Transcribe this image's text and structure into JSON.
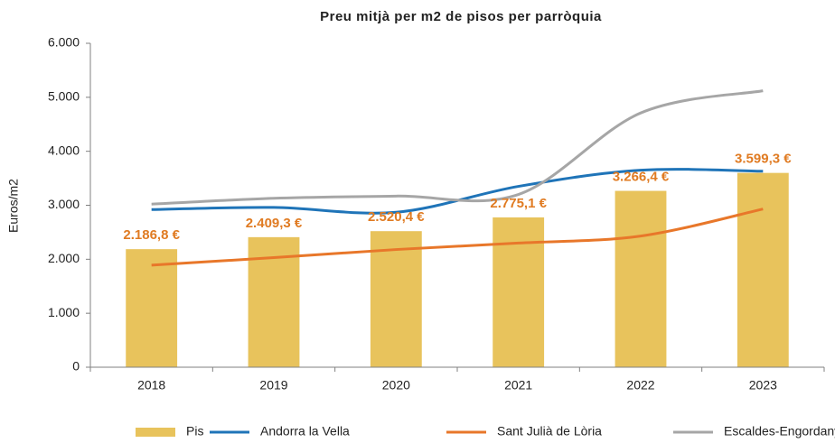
{
  "chart_data": {
    "type": "bar",
    "title": "Preu mitjà per m2 de pisos per parròquia",
    "y_label": "Euros/m2",
    "categories": [
      "2018",
      "2019",
      "2020",
      "2021",
      "2022",
      "2023"
    ],
    "ylim": [
      0,
      6000
    ],
    "yticks": [
      0,
      {
        "value": 1000,
        "label": "1.000"
      },
      {
        "value": 2000,
        "label": "2.000"
      },
      {
        "value": 3000,
        "label": "3.000"
      },
      {
        "value": 4000,
        "label": "4.000"
      },
      {
        "value": 5000,
        "label": "5.000"
      },
      {
        "value": 6000,
        "label": "6.000"
      }
    ],
    "grid": false,
    "legend": "bottom",
    "series": [
      {
        "name": "Pis",
        "type": "bar",
        "color": "#e8c35c",
        "values": [
          2186.8,
          2409.3,
          2520.4,
          2775.1,
          3266.4,
          3599.3
        ],
        "value_labels": [
          "2.186,8 €",
          "2.409,3 €",
          "2.520,4 €",
          "2.775,1 €",
          "3.266,4 €",
          "3.599,3 €"
        ],
        "label_color": "#e07b22"
      },
      {
        "name": "Andorra la Vella",
        "type": "line",
        "color": "#1f74b8",
        "values": [
          2920,
          2960,
          2870,
          3350,
          3650,
          3630
        ]
      },
      {
        "name": "Sant Julià de Lòria",
        "type": "line",
        "color": "#e8772a",
        "values": [
          1890,
          2030,
          2180,
          2300,
          2430,
          2930
        ]
      },
      {
        "name": "Escaldes-Engordany",
        "type": "line",
        "color": "#a6a6a6",
        "values": [
          3020,
          3130,
          3170,
          3200,
          4710,
          5120
        ]
      }
    ]
  }
}
